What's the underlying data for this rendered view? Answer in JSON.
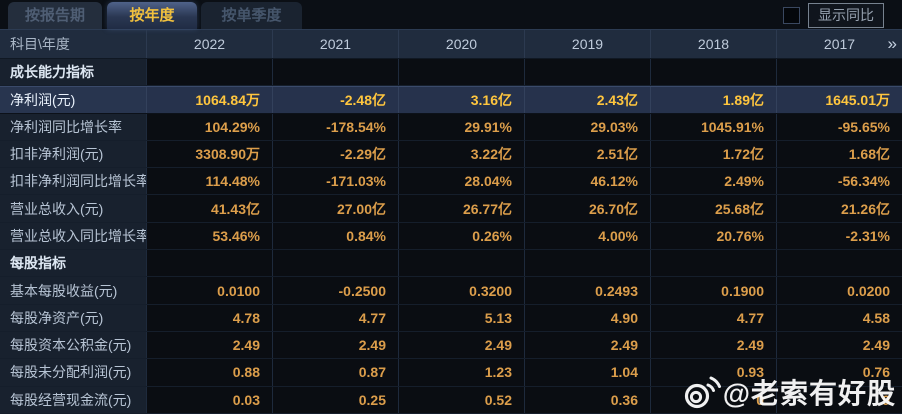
{
  "tabs": [
    {
      "label": "按报告期",
      "active": false
    },
    {
      "label": "按年度",
      "active": true
    },
    {
      "label": "按单季度",
      "active": false
    }
  ],
  "controls": {
    "show_yoy_label": "显示同比",
    "show_yoy_checked": false
  },
  "table": {
    "corner_label": "科目\\年度",
    "years": [
      "2022",
      "2021",
      "2020",
      "2019",
      "2018",
      "2017"
    ],
    "more_icon": "»",
    "rows": [
      {
        "type": "section",
        "label": "成长能力指标",
        "values": [
          "",
          "",
          "",
          "",
          "",
          ""
        ]
      },
      {
        "type": "data",
        "highlight": true,
        "label": "净利润(元)",
        "values": [
          "1064.84万",
          "-2.48亿",
          "3.16亿",
          "2.43亿",
          "1.89亿",
          "1645.01万"
        ]
      },
      {
        "type": "data",
        "label": "净利润同比增长率",
        "values": [
          "104.29%",
          "-178.54%",
          "29.91%",
          "29.03%",
          "1045.91%",
          "-95.65%"
        ]
      },
      {
        "type": "data",
        "label": "扣非净利润(元)",
        "values": [
          "3308.90万",
          "-2.29亿",
          "3.22亿",
          "2.51亿",
          "1.72亿",
          "1.68亿"
        ]
      },
      {
        "type": "data",
        "label": "扣非净利润同比增长率",
        "values": [
          "114.48%",
          "-171.03%",
          "28.04%",
          "46.12%",
          "2.49%",
          "-56.34%"
        ]
      },
      {
        "type": "data",
        "label": "营业总收入(元)",
        "values": [
          "41.43亿",
          "27.00亿",
          "26.77亿",
          "26.70亿",
          "25.68亿",
          "21.26亿"
        ]
      },
      {
        "type": "data",
        "label": "营业总收入同比增长率",
        "values": [
          "53.46%",
          "0.84%",
          "0.26%",
          "4.00%",
          "20.76%",
          "-2.31%"
        ]
      },
      {
        "type": "section",
        "label": "每股指标",
        "values": [
          "",
          "",
          "",
          "",
          "",
          ""
        ]
      },
      {
        "type": "data",
        "label": "基本每股收益(元)",
        "values": [
          "0.0100",
          "-0.2500",
          "0.3200",
          "0.2493",
          "0.1900",
          "0.0200"
        ]
      },
      {
        "type": "data",
        "label": "每股净资产(元)",
        "values": [
          "4.78",
          "4.77",
          "5.13",
          "4.90",
          "4.77",
          "4.58"
        ]
      },
      {
        "type": "data",
        "label": "每股资本公积金(元)",
        "values": [
          "2.49",
          "2.49",
          "2.49",
          "2.49",
          "2.49",
          "2.49"
        ]
      },
      {
        "type": "data",
        "label": "每股未分配利润(元)",
        "values": [
          "0.88",
          "0.87",
          "1.23",
          "1.04",
          "0.93",
          "0.76"
        ]
      },
      {
        "type": "data",
        "label": "每股经营现金流(元)",
        "values": [
          "0.03",
          "0.25",
          "0.52",
          "0.36",
          "0",
          "9"
        ]
      }
    ]
  },
  "watermark": {
    "text": "@老索有好股",
    "icon": "weibo-icon"
  },
  "colors": {
    "page_bg": "#0a0d12",
    "header_bg": "#202c3e",
    "label_col_bg": "#18212e",
    "highlight_row_bg": "#26324c",
    "value_orange": "#dc9e4b",
    "highlight_value_yellow": "#ffc63e",
    "tab_active_text": "#f2c13e"
  }
}
